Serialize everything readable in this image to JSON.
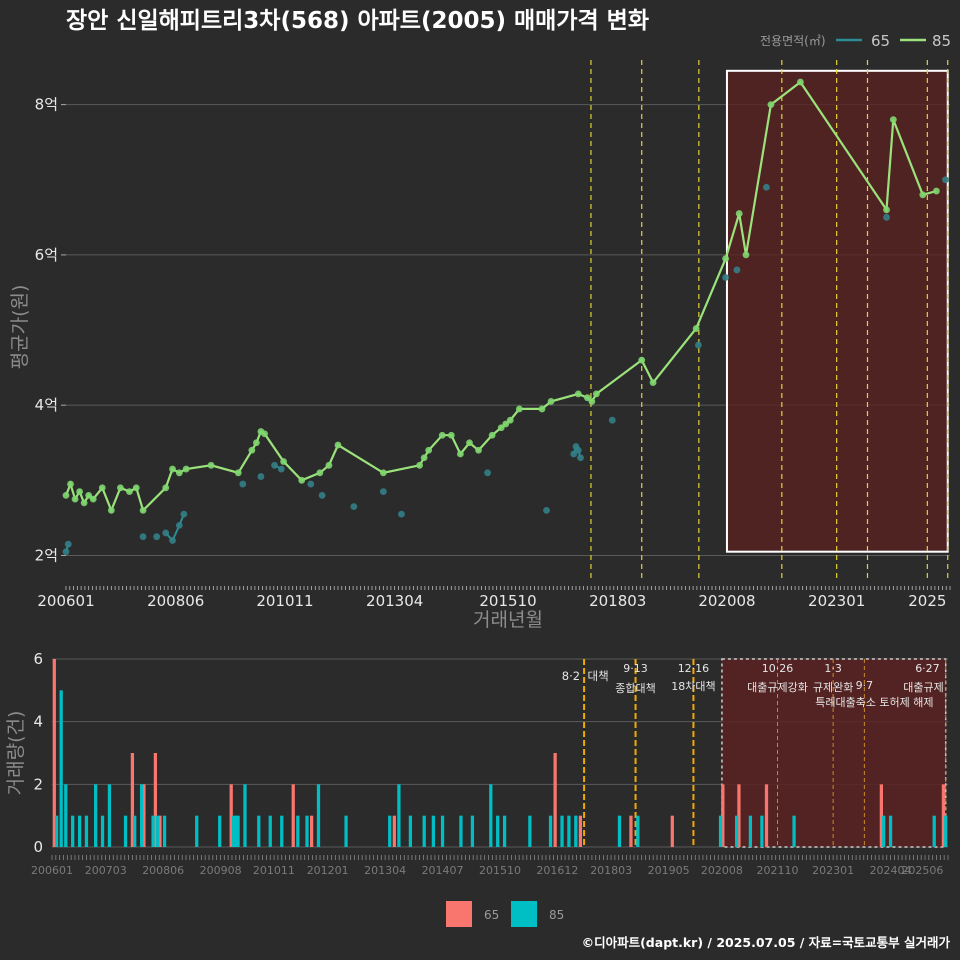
{
  "title": "장안 신일해피트리3차(568) 아파트(2005) 매매가격 변화",
  "credit": "©디아파트(dapt.kr) / 2025.07.05 / 자료=국토교통부 실거래가",
  "colors": {
    "bg": "#2b2b2c",
    "line85": "#9be27b",
    "pt85": "#7fd66f",
    "line65": "#2b8c94",
    "pt65": "#337f86",
    "bar65": "#f8766d",
    "bar85": "#00bfc4",
    "vline_top": "#e3d33a",
    "vline_bottom": "#f2a900",
    "highlight": "#5a2222"
  },
  "chart_data": [
    {
      "type": "line",
      "title": "장안 신일해피트리3차(568) 아파트(2005) 매매가격 변화",
      "xlabel": "거래년월",
      "ylabel": "평균가(원)",
      "xlim": [
        2006.0,
        2025.5
      ],
      "ylim": [
        1.7,
        8.9
      ],
      "ytick_values": [
        2,
        4,
        6,
        8
      ],
      "ytick_labels": [
        "2억",
        "4억",
        "6억",
        "8억"
      ],
      "xtick_values": [
        2006.0,
        2008.42,
        2010.83,
        2013.25,
        2015.75,
        2018.17,
        2020.58,
        2023.0,
        2025.0
      ],
      "xtick_labels": [
        "200601",
        "200806",
        "201011",
        "201304",
        "201510",
        "201803",
        "202008",
        "202301",
        "2025"
      ],
      "legend": {
        "title": "전용면적(㎡)",
        "entries": [
          "65",
          "85"
        ],
        "position": "top-right"
      },
      "highlight_box": {
        "x_from": 2020.58,
        "x_to": 2025.45,
        "y_from": 2.05,
        "y_to": 8.45
      },
      "policy_dates": [
        2017.58,
        2018.7,
        2019.96,
        2021.79,
        2023.0,
        2023.68,
        2025.0,
        2025.45
      ],
      "series": [
        {
          "name": "85",
          "style": "line+points",
          "x": [
            2006.0,
            2006.1,
            2006.2,
            2006.3,
            2006.4,
            2006.5,
            2006.6,
            2006.8,
            2007.0,
            2007.2,
            2007.4,
            2007.55,
            2007.7,
            2008.2,
            2008.35,
            2008.5,
            2008.65,
            2009.2,
            2009.8,
            2010.1,
            2010.2,
            2010.3,
            2010.38,
            2010.8,
            2011.2,
            2011.6,
            2011.8,
            2012.0,
            2013.0,
            2013.8,
            2013.9,
            2014.0,
            2014.3,
            2014.5,
            2014.7,
            2014.9,
            2015.1,
            2015.4,
            2015.6,
            2015.7,
            2015.8,
            2016.0,
            2016.5,
            2016.7,
            2017.3,
            2017.5,
            2017.6,
            2017.7,
            2018.7,
            2018.95,
            2019.9,
            2020.55,
            2020.85,
            2021.0,
            2021.55,
            2022.2,
            2024.1,
            2024.25,
            2024.9,
            2025.2
          ],
          "y": [
            2.8,
            2.95,
            2.75,
            2.85,
            2.7,
            2.8,
            2.75,
            2.9,
            2.6,
            2.9,
            2.85,
            2.9,
            2.6,
            2.9,
            3.15,
            3.1,
            3.15,
            3.2,
            3.1,
            3.4,
            3.5,
            3.65,
            3.62,
            3.25,
            3.0,
            3.1,
            3.2,
            3.47,
            3.1,
            3.2,
            3.3,
            3.4,
            3.6,
            3.6,
            3.35,
            3.5,
            3.4,
            3.6,
            3.7,
            3.75,
            3.8,
            3.95,
            3.95,
            4.05,
            4.15,
            4.1,
            4.05,
            4.15,
            4.6,
            4.3,
            5.02,
            5.95,
            6.55,
            6.0,
            8.0,
            8.3,
            6.6,
            7.8,
            6.8,
            6.85
          ]
        },
        {
          "name": "65",
          "style": "line+points",
          "x": [
            2006.0,
            2006.05,
            2007.7,
            2008.0,
            2008.2,
            2008.35,
            2008.5,
            2008.6,
            2009.9,
            2010.3,
            2010.6,
            2010.75,
            2011.4,
            2011.65,
            2012.35,
            2013.0,
            2013.4,
            2015.3,
            2016.6,
            2017.2,
            2017.25,
            2017.3,
            2017.35,
            2018.05,
            2019.95,
            2020.55,
            2020.8,
            2021.45,
            2024.1,
            2025.4
          ],
          "y": [
            2.05,
            2.15,
            2.25,
            2.25,
            2.3,
            2.2,
            2.4,
            2.55,
            2.95,
            3.05,
            3.2,
            3.15,
            2.95,
            2.8,
            2.65,
            2.85,
            2.55,
            3.1,
            2.6,
            3.35,
            3.45,
            3.4,
            3.3,
            3.8,
            4.8,
            5.7,
            5.8,
            6.9,
            6.5,
            7.0
          ]
        }
      ]
    },
    {
      "type": "bar",
      "title": "",
      "xlabel": "",
      "ylabel": "거래량(건)",
      "xlim": [
        2006.0,
        2025.5
      ],
      "ylim": [
        0,
        6
      ],
      "ytick_values": [
        0,
        2,
        4,
        6
      ],
      "ytick_labels": [
        "0",
        "2",
        "4",
        "6"
      ],
      "xtick_values": [
        2006.0,
        2007.17,
        2008.42,
        2009.67,
        2010.83,
        2012.0,
        2013.25,
        2014.5,
        2015.75,
        2017.0,
        2018.17,
        2019.42,
        2020.58,
        2021.79,
        2023.0,
        2024.25,
        2025.4
      ],
      "xtick_labels": [
        "200601",
        "200703",
        "200806",
        "200908",
        "201011",
        "201201",
        "201304",
        "201407",
        "201510",
        "201612",
        "201803",
        "201905",
        "202008",
        "202110",
        "202301",
        "202404",
        "202506"
      ],
      "legend": {
        "entries": [
          "65",
          "85"
        ],
        "position": "bottom"
      },
      "highlight_box": {
        "x_from": 2020.58,
        "x_to": 2025.45,
        "y_from": 0,
        "y_to": 6
      },
      "series": [
        {
          "name": "65",
          "x": [
            2006.05,
            2007.75,
            2008.0,
            2008.25,
            2008.35,
            2009.9,
            2011.25,
            2011.65,
            2013.45,
            2016.95,
            2017.5,
            2018.6,
            2019.5,
            2020.6,
            2020.95,
            2021.55,
            2024.05,
            2025.4
          ],
          "values": [
            6,
            3,
            2,
            3,
            1,
            2,
            2,
            1,
            1,
            3,
            1,
            1,
            1,
            2,
            2,
            2,
            2,
            2
          ]
        },
        {
          "name": "85",
          "x": [
            2006.1,
            2006.2,
            2006.3,
            2006.45,
            2006.6,
            2006.75,
            2006.95,
            2007.1,
            2007.25,
            2007.6,
            2007.8,
            2007.95,
            2008.2,
            2008.3,
            2008.45,
            2009.15,
            2009.65,
            2009.95,
            2010.0,
            2010.05,
            2010.2,
            2010.5,
            2010.75,
            2011.0,
            2011.35,
            2011.55,
            2011.8,
            2012.4,
            2013.35,
            2013.55,
            2013.8,
            2014.1,
            2014.3,
            2014.5,
            2014.9,
            2015.15,
            2015.55,
            2015.7,
            2015.85,
            2016.4,
            2016.85,
            2017.1,
            2017.25,
            2017.4,
            2018.35,
            2018.75,
            2020.55,
            2020.9,
            2021.2,
            2021.45,
            2022.15,
            2024.1,
            2024.25,
            2025.2,
            2025.45
          ],
          "values": [
            1,
            5,
            2,
            1,
            1,
            1,
            2,
            1,
            2,
            1,
            1,
            2,
            1,
            1,
            1,
            1,
            1,
            1,
            1,
            1,
            2,
            1,
            1,
            1,
            1,
            1,
            2,
            1,
            1,
            2,
            1,
            1,
            1,
            1,
            1,
            1,
            2,
            1,
            1,
            1,
            1,
            1,
            1,
            1,
            1,
            1,
            1,
            1,
            1,
            1,
            1,
            1,
            1,
            1,
            1
          ]
        }
      ],
      "annotations": [
        {
          "x": 2017.58,
          "date": "8·2",
          "text": "대책"
        },
        {
          "x": 2018.7,
          "date": "9·13",
          "text": "종합대책"
        },
        {
          "x": 2019.96,
          "date": "12·16",
          "text": "18차대책"
        },
        {
          "x": 2021.79,
          "date": "10·26",
          "text": "대출규제강화"
        },
        {
          "x": 2023.0,
          "date": "1·3",
          "text": "규제완화"
        },
        {
          "x": 2023.68,
          "date": "9·7",
          "text": "특례대출축소 토허제 해제"
        },
        {
          "x": 2025.45,
          "date": "6·27",
          "text": "대출규제"
        }
      ]
    }
  ]
}
